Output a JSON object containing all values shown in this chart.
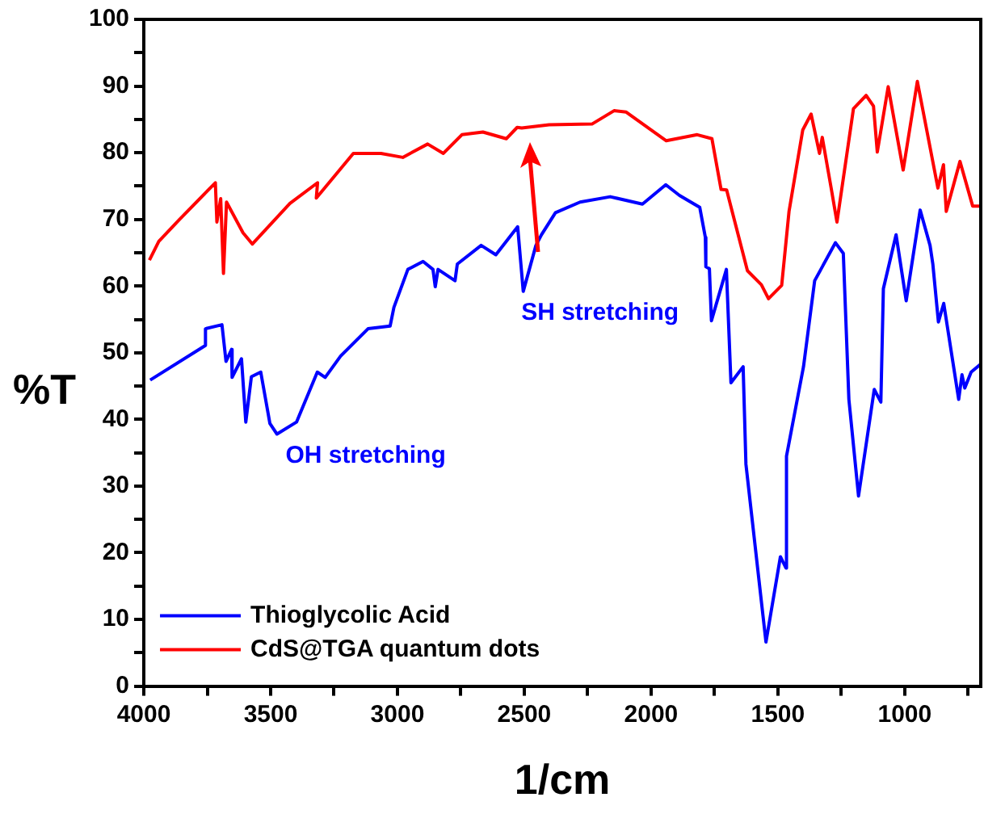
{
  "chart_data": {
    "type": "line",
    "xlabel": "1/cm",
    "ylabel": "%T",
    "xlim": [
      4000,
      700
    ],
    "ylim": [
      0,
      100
    ],
    "xticks": [
      4000,
      {
        "value": 3750,
        "label": null
      },
      3500,
      {
        "value": 3250,
        "label": null
      },
      3000,
      {
        "value": 2750,
        "label": null
      },
      2500,
      {
        "value": 2250,
        "label": null
      },
      2000,
      {
        "value": 1750,
        "label": null
      },
      1500,
      {
        "value": 1250,
        "label": null
      },
      1000,
      {
        "value": 750,
        "label": null
      }
    ],
    "yticks": [
      0,
      {
        "value": 5,
        "label": null
      },
      10,
      {
        "value": 15,
        "label": null
      },
      20,
      {
        "value": 25,
        "label": null
      },
      30,
      {
        "value": 35,
        "label": null
      },
      40,
      {
        "value": 45,
        "label": null
      },
      50,
      {
        "value": 55,
        "label": null
      },
      60,
      {
        "value": 65,
        "label": null
      },
      70,
      {
        "value": 75,
        "label": null
      },
      80,
      {
        "value": 85,
        "label": null
      },
      90,
      {
        "value": 95,
        "label": null
      },
      100
    ],
    "grid": false,
    "legend": "bottom left",
    "marker": "none",
    "line_style": "solid",
    "annotations": [
      "OH stretching",
      "SH stretching"
    ],
    "series": [
      {
        "name": "Thioglycolic Acid",
        "color": "#0000ff",
        "x": [
          3975,
          3757,
          3757,
          3692,
          3676,
          3654,
          3652,
          3615,
          3598,
          3576,
          3539,
          3503,
          3475,
          3398,
          3316,
          3285,
          3224,
          3116,
          3029,
          3014,
          2959,
          2899,
          2860,
          2851,
          2840,
          2773,
          2764,
          2670,
          2612,
          2526,
          2504,
          2454,
          2432,
          2377,
          2280,
          2161,
          2034,
          1942,
          1888,
          1808,
          1786,
          1784,
          1770,
          1762,
          1703,
          1685,
          1637,
          1626,
          1547,
          1490,
          1468,
          1466,
          1399,
          1355,
          1273,
          1242,
          1220,
          1182,
          1120,
          1094,
          1084,
          1034,
          994,
          939,
          900,
          889,
          867,
          846,
          787,
          774,
          763,
          738,
          700
        ],
        "values": [
          45.9,
          51.1,
          53.6,
          54.2,
          48.7,
          50.5,
          46.3,
          49.1,
          39.6,
          46.4,
          47.1,
          39.4,
          37.8,
          39.6,
          47.1,
          46.3,
          49.5,
          53.6,
          54,
          56.8,
          62.5,
          63.7,
          62.5,
          59.9,
          62.5,
          60.8,
          63.3,
          66.1,
          64.7,
          68.9,
          59.2,
          66.1,
          67.7,
          71,
          72.6,
          73.4,
          72.3,
          75.2,
          73.6,
          71.8,
          67.3,
          62.9,
          62.6,
          54.8,
          62.5,
          45.5,
          47.9,
          33.3,
          6.6,
          19.4,
          17.7,
          34.5,
          47.9,
          60.8,
          66.5,
          64.9,
          43,
          28.5,
          44.5,
          42.6,
          59.6,
          67.7,
          57.8,
          71.4,
          66.1,
          63.3,
          54.6,
          57.4,
          43,
          46.7,
          44.7,
          47.1,
          48.3
        ]
      },
      {
        "name": "CdS@TGA quantum dots",
        "color": "#ff0000",
        "x": [
          3978,
          3941,
          3859,
          3718,
          3712,
          3697,
          3686,
          3674,
          3609,
          3572,
          3424,
          3315,
          3320,
          3174,
          3065,
          2979,
          2881,
          2819,
          2746,
          2663,
          2571,
          2528,
          2510,
          2402,
          2233,
          2146,
          2098,
          1940,
          1818,
          1760,
          1724,
          1702,
          1620,
          1565,
          1537,
          1485,
          1456,
          1402,
          1369,
          1336,
          1325,
          1289,
          1267,
          1202,
          1152,
          1123,
          1108,
          1065,
          1006,
          950,
          869,
          847,
          836,
          782,
          732,
          700
        ],
        "values": [
          63.9,
          66.7,
          70,
          75.5,
          69.6,
          73.1,
          61.9,
          72.6,
          68,
          66.3,
          72.4,
          75.5,
          73.2,
          79.9,
          79.9,
          79.3,
          81.3,
          79.9,
          82.7,
          83.1,
          82.1,
          83.8,
          83.7,
          84.2,
          84.3,
          86.3,
          86.1,
          81.8,
          82.7,
          82.1,
          74.5,
          74.4,
          62.3,
          60.2,
          58.1,
          60.1,
          71.2,
          83.4,
          85.8,
          79.9,
          82.3,
          74.5,
          69.6,
          86.6,
          88.6,
          87,
          80.1,
          89.9,
          77.4,
          90.7,
          74.7,
          78.2,
          71.2,
          78.7,
          72,
          72
        ]
      }
    ]
  }
}
